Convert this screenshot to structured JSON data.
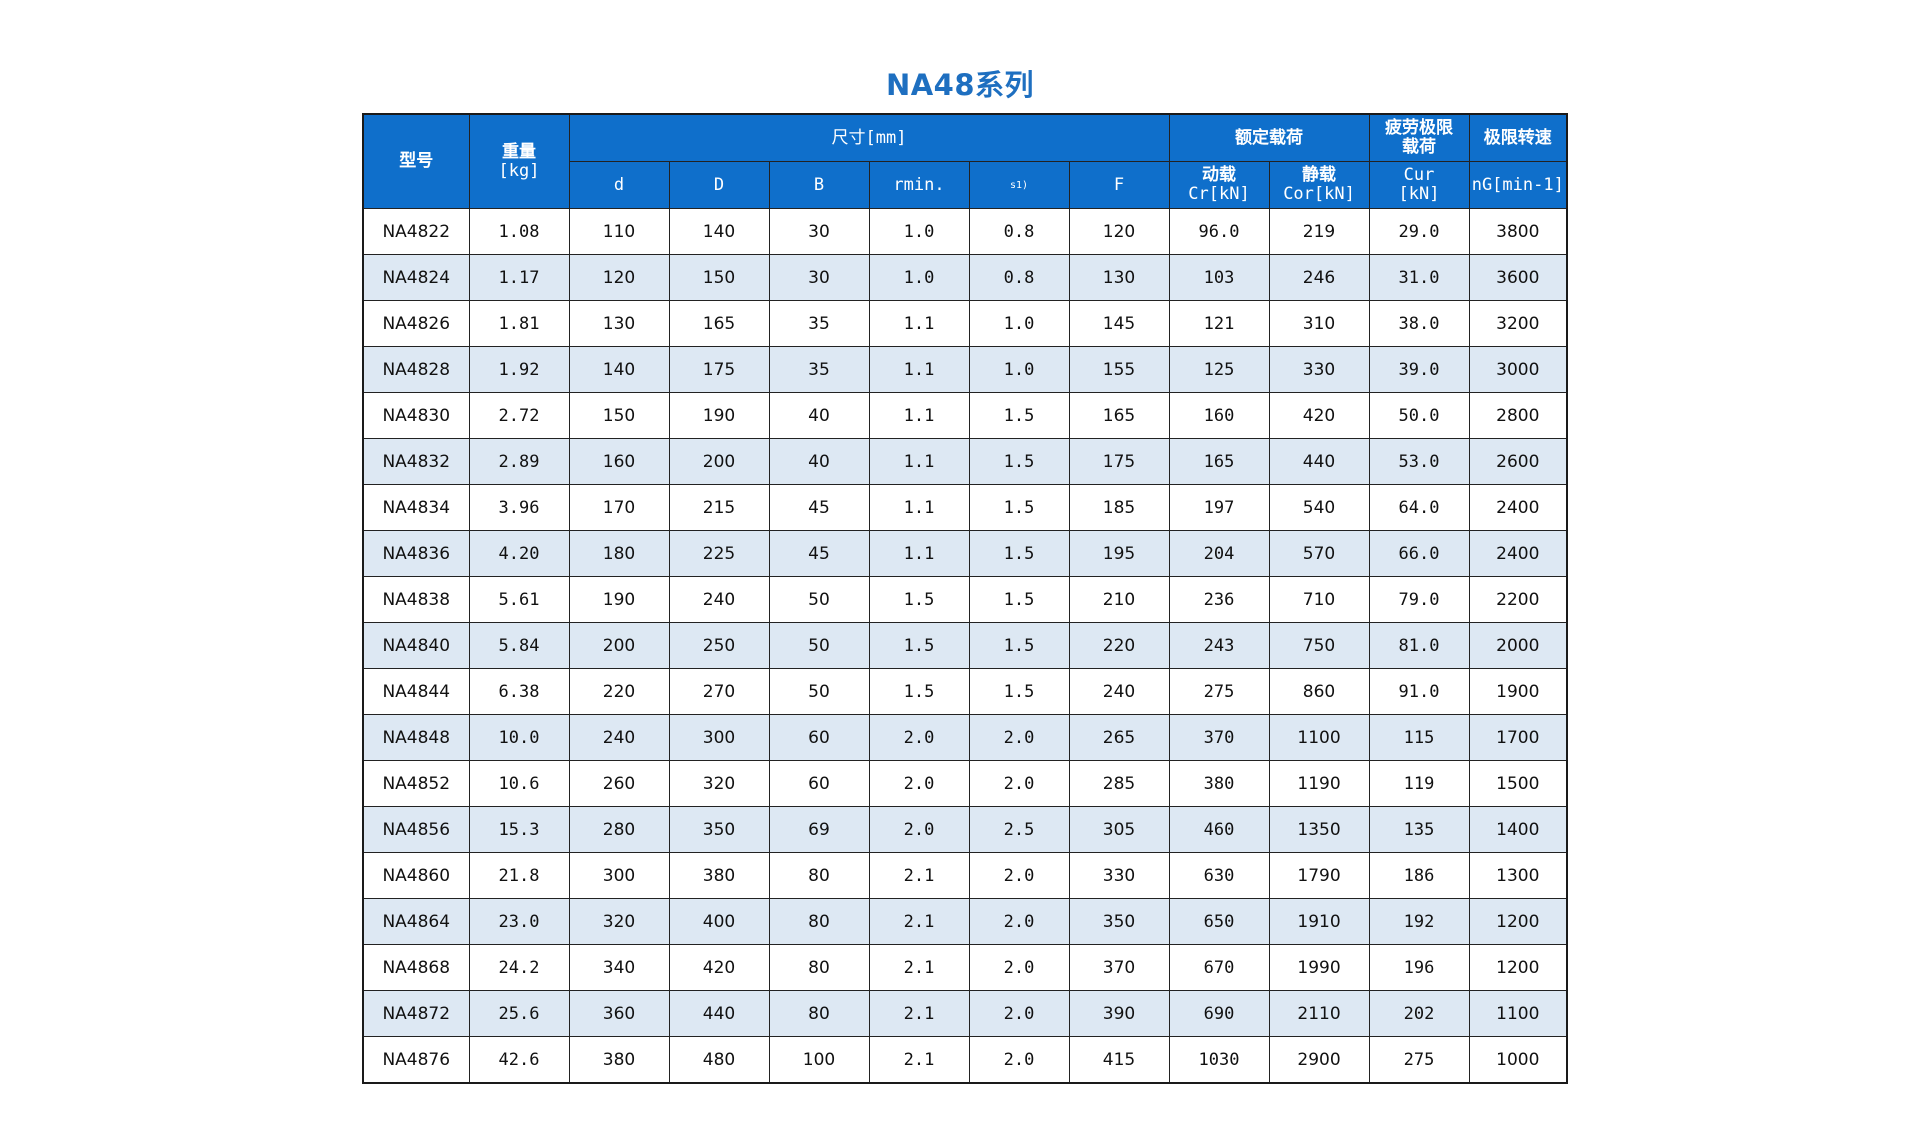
{
  "title": "NA48系列",
  "header": {
    "model": "型号",
    "weight_label": "重量",
    "weight_unit": "[kg]",
    "dimensions": "尺寸[mm]",
    "d": "d",
    "D": "D",
    "B": "B",
    "rmin": "rmin.",
    "s": "s1)",
    "F": "F",
    "rated_load": "额定载荷",
    "dynamic_label": "动载",
    "dynamic_unit": "Cr[kN]",
    "static_label": "静载",
    "static_unit": "Cor[kN]",
    "fatigue_line1": "疲劳极限",
    "fatigue_line2": "载荷",
    "fatigue_symbol": "Cur",
    "fatigue_unit": "[kN]",
    "speed_label": "极限转速",
    "speed_unit": "nG[min-1]"
  },
  "rows": [
    {
      "model": "NA4822",
      "weight": "1.08",
      "d": "110",
      "D": "140",
      "B": "30",
      "rmin": "1.0",
      "s": "0.8",
      "F": "120",
      "cr": "96.0",
      "cor": "219",
      "cur": "29.0",
      "ng": "3800"
    },
    {
      "model": "NA4824",
      "weight": "1.17",
      "d": "120",
      "D": "150",
      "B": "30",
      "rmin": "1.0",
      "s": "0.8",
      "F": "130",
      "cr": "103",
      "cor": "246",
      "cur": "31.0",
      "ng": "3600"
    },
    {
      "model": "NA4826",
      "weight": "1.81",
      "d": "130",
      "D": "165",
      "B": "35",
      "rmin": "1.1",
      "s": "1.0",
      "F": "145",
      "cr": "121",
      "cor": "310",
      "cur": "38.0",
      "ng": "3200"
    },
    {
      "model": "NA4828",
      "weight": "1.92",
      "d": "140",
      "D": "175",
      "B": "35",
      "rmin": "1.1",
      "s": "1.0",
      "F": "155",
      "cr": "125",
      "cor": "330",
      "cur": "39.0",
      "ng": "3000"
    },
    {
      "model": "NA4830",
      "weight": "2.72",
      "d": "150",
      "D": "190",
      "B": "40",
      "rmin": "1.1",
      "s": "1.5",
      "F": "165",
      "cr": "160",
      "cor": "420",
      "cur": "50.0",
      "ng": "2800"
    },
    {
      "model": "NA4832",
      "weight": "2.89",
      "d": "160",
      "D": "200",
      "B": "40",
      "rmin": "1.1",
      "s": "1.5",
      "F": "175",
      "cr": "165",
      "cor": "440",
      "cur": "53.0",
      "ng": "2600"
    },
    {
      "model": "NA4834",
      "weight": "3.96",
      "d": "170",
      "D": "215",
      "B": "45",
      "rmin": "1.1",
      "s": "1.5",
      "F": "185",
      "cr": "197",
      "cor": "540",
      "cur": "64.0",
      "ng": "2400"
    },
    {
      "model": "NA4836",
      "weight": "4.20",
      "d": "180",
      "D": "225",
      "B": "45",
      "rmin": "1.1",
      "s": "1.5",
      "F": "195",
      "cr": "204",
      "cor": "570",
      "cur": "66.0",
      "ng": "2400"
    },
    {
      "model": "NA4838",
      "weight": "5.61",
      "d": "190",
      "D": "240",
      "B": "50",
      "rmin": "1.5",
      "s": "1.5",
      "F": "210",
      "cr": "236",
      "cor": "710",
      "cur": "79.0",
      "ng": "2200"
    },
    {
      "model": "NA4840",
      "weight": "5.84",
      "d": "200",
      "D": "250",
      "B": "50",
      "rmin": "1.5",
      "s": "1.5",
      "F": "220",
      "cr": "243",
      "cor": "750",
      "cur": "81.0",
      "ng": "2000"
    },
    {
      "model": "NA4844",
      "weight": "6.38",
      "d": "220",
      "D": "270",
      "B": "50",
      "rmin": "1.5",
      "s": "1.5",
      "F": "240",
      "cr": "275",
      "cor": "860",
      "cur": "91.0",
      "ng": "1900"
    },
    {
      "model": "NA4848",
      "weight": "10.0",
      "d": "240",
      "D": "300",
      "B": "60",
      "rmin": "2.0",
      "s": "2.0",
      "F": "265",
      "cr": "370",
      "cor": "1100",
      "cur": "115",
      "ng": "1700"
    },
    {
      "model": "NA4852",
      "weight": "10.6",
      "d": "260",
      "D": "320",
      "B": "60",
      "rmin": "2.0",
      "s": "2.0",
      "F": "285",
      "cr": "380",
      "cor": "1190",
      "cur": "119",
      "ng": "1500"
    },
    {
      "model": "NA4856",
      "weight": "15.3",
      "d": "280",
      "D": "350",
      "B": "69",
      "rmin": "2.0",
      "s": "2.5",
      "F": "305",
      "cr": "460",
      "cor": "1350",
      "cur": "135",
      "ng": "1400"
    },
    {
      "model": "NA4860",
      "weight": "21.8",
      "d": "300",
      "D": "380",
      "B": "80",
      "rmin": "2.1",
      "s": "2.0",
      "F": "330",
      "cr": "630",
      "cor": "1790",
      "cur": "186",
      "ng": "1300"
    },
    {
      "model": "NA4864",
      "weight": "23.0",
      "d": "320",
      "D": "400",
      "B": "80",
      "rmin": "2.1",
      "s": "2.0",
      "F": "350",
      "cr": "650",
      "cor": "1910",
      "cur": "192",
      "ng": "1200"
    },
    {
      "model": "NA4868",
      "weight": "24.2",
      "d": "340",
      "D": "420",
      "B": "80",
      "rmin": "2.1",
      "s": "2.0",
      "F": "370",
      "cr": "670",
      "cor": "1990",
      "cur": "196",
      "ng": "1200"
    },
    {
      "model": "NA4872",
      "weight": "25.6",
      "d": "360",
      "D": "440",
      "B": "80",
      "rmin": "2.1",
      "s": "2.0",
      "F": "390",
      "cr": "690",
      "cor": "2110",
      "cur": "202",
      "ng": "1100"
    },
    {
      "model": "NA4876",
      "weight": "42.6",
      "d": "380",
      "D": "480",
      "B": "100",
      "rmin": "2.1",
      "s": "2.0",
      "F": "415",
      "cr": "1030",
      "cor": "2900",
      "cur": "275",
      "ng": "1000"
    }
  ]
}
